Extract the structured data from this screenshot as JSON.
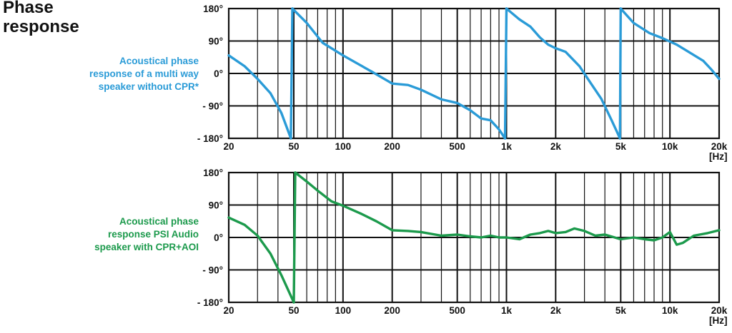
{
  "title_lines": [
    "Phase",
    "response"
  ],
  "descriptions": {
    "top": [
      "Acoustical phase",
      "response of a multi way",
      "speaker without CPR*"
    ],
    "bottom": [
      "Acoustical phase",
      "response PSI Audio",
      "speaker with CPR+AOI"
    ]
  },
  "colors": {
    "top_series": "#2a9bd7",
    "bottom_series": "#1c9a4c",
    "grid": "#111111"
  },
  "chart_data": [
    {
      "type": "line",
      "title": "",
      "xlabel": "",
      "xscale": "log",
      "xlim": [
        20,
        20000
      ],
      "ylim": [
        -180,
        180
      ],
      "xtick_values": [
        20,
        50,
        100,
        200,
        500,
        1000,
        2000,
        5000,
        10000,
        20000
      ],
      "xtick_labels": [
        "20",
        "50",
        "100",
        "200",
        "500",
        "1k",
        "2k",
        "5k",
        "10k",
        "20k"
      ],
      "ytick_values": [
        180,
        90,
        0,
        -90,
        -180
      ],
      "ytick_labels": [
        "180°",
        "90°",
        "0°",
        "- 90°",
        "- 180°"
      ],
      "unit_label": "[Hz]",
      "grid": true,
      "series": [
        {
          "color": "#2a9bd7",
          "segments": [
            [
              [
                20,
                50
              ],
              [
                25,
                20
              ],
              [
                30,
                -15
              ],
              [
                36,
                -55
              ],
              [
                42,
                -110
              ],
              [
                48,
                -180
              ]
            ],
            [
              [
                49,
                180
              ],
              [
                60,
                140
              ],
              [
                75,
                85
              ],
              [
                100,
                50
              ],
              [
                150,
                5
              ],
              [
                200,
                -28
              ],
              [
                250,
                -32
              ],
              [
                300,
                -45
              ],
              [
                400,
                -72
              ],
              [
                500,
                -82
              ],
              [
                600,
                -102
              ],
              [
                700,
                -125
              ],
              [
                800,
                -130
              ],
              [
                900,
                -155
              ],
              [
                980,
                -180
              ]
            ],
            [
              [
                1000,
                180
              ],
              [
                1200,
                150
              ],
              [
                1400,
                130
              ],
              [
                1600,
                100
              ],
              [
                1800,
                80
              ],
              [
                2000,
                70
              ],
              [
                2300,
                60
              ],
              [
                2800,
                20
              ],
              [
                3200,
                -20
              ],
              [
                3800,
                -70
              ],
              [
                4400,
                -130
              ],
              [
                4950,
                -180
              ]
            ],
            [
              [
                5000,
                180
              ],
              [
                6000,
                140
              ],
              [
                7500,
                112
              ],
              [
                9000,
                98
              ],
              [
                11000,
                80
              ],
              [
                13000,
                60
              ],
              [
                16000,
                35
              ],
              [
                18000,
                10
              ],
              [
                20000,
                -15
              ]
            ]
          ]
        }
      ]
    },
    {
      "type": "line",
      "title": "",
      "xlabel": "",
      "xscale": "log",
      "xlim": [
        20,
        20000
      ],
      "ylim": [
        -180,
        180
      ],
      "xtick_values": [
        20,
        50,
        100,
        200,
        500,
        1000,
        2000,
        5000,
        10000,
        20000
      ],
      "xtick_labels": [
        "20",
        "50",
        "100",
        "200",
        "500",
        "1k",
        "2k",
        "5k",
        "10k",
        "20k"
      ],
      "ytick_values": [
        180,
        90,
        0,
        -90,
        -180
      ],
      "ytick_labels": [
        "180°",
        "90°",
        "0°",
        "- 90°",
        "- 180°"
      ],
      "unit_label": "[Hz]",
      "grid": true,
      "series": [
        {
          "color": "#1c9a4c",
          "segments": [
            [
              [
                20,
                55
              ],
              [
                25,
                35
              ],
              [
                30,
                5
              ],
              [
                36,
                -45
              ],
              [
                42,
                -105
              ],
              [
                50,
                -180
              ]
            ],
            [
              [
                51,
                180
              ],
              [
                60,
                155
              ],
              [
                70,
                130
              ],
              [
                85,
                100
              ],
              [
                100,
                88
              ],
              [
                130,
                65
              ],
              [
                160,
                45
              ],
              [
                200,
                20
              ],
              [
                250,
                18
              ],
              [
                300,
                15
              ],
              [
                400,
                5
              ],
              [
                500,
                8
              ],
              [
                600,
                3
              ],
              [
                700,
                0
              ],
              [
                800,
                5
              ],
              [
                900,
                0
              ],
              [
                1000,
                0
              ],
              [
                1200,
                -5
              ],
              [
                1400,
                8
              ],
              [
                1600,
                12
              ],
              [
                1800,
                18
              ],
              [
                2000,
                12
              ],
              [
                2300,
                15
              ],
              [
                2600,
                25
              ],
              [
                3000,
                18
              ],
              [
                3500,
                5
              ],
              [
                4000,
                8
              ],
              [
                5000,
                -5
              ],
              [
                6000,
                0
              ],
              [
                7000,
                -5
              ],
              [
                8000,
                -8
              ],
              [
                9000,
                0
              ],
              [
                10000,
                15
              ],
              [
                11000,
                -20
              ],
              [
                12000,
                -15
              ],
              [
                14000,
                5
              ],
              [
                17000,
                12
              ],
              [
                20000,
                20
              ]
            ]
          ]
        }
      ]
    }
  ]
}
